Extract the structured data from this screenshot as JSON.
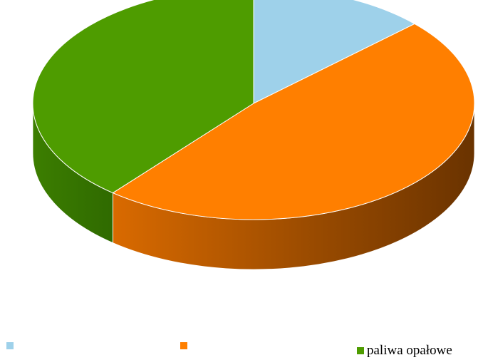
{
  "chart_data": {
    "type": "pie",
    "title": "",
    "categories": [
      "",
      "",
      "paliwa opałowe"
    ],
    "values": [
      13,
      48,
      39
    ],
    "colors": [
      "#9ED1EA",
      "#FF7F00",
      "#4E9C00"
    ],
    "side_colors": [
      "#6BAFD0",
      "#C95F00",
      "#3D7D00"
    ],
    "legend_position": "bottom",
    "style": "3d-pie"
  }
}
